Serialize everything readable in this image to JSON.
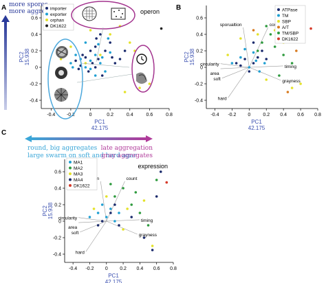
{
  "colors": {
    "importer": "#1a2a6c",
    "exporter": "#1f9fd2",
    "orphan": "#e4e22a",
    "dk1622": "#222222",
    "ATPase": "#1a2a6c",
    "TM": "#1f9fd2",
    "SBP": "#e4e22a",
    "AT": "#d77a1f",
    "TMSBP": "#2e9a3e",
    "MA1": "#1f9fd2",
    "MA2": "#2e9a3e",
    "MA3": "#e4e22a",
    "MA4": "#1a2a6c",
    "DK1622": "#d63a2a",
    "axis_blue": "#3a4fb0",
    "arrow_left": "#3aa6d8",
    "arrow_right": "#b03a9a",
    "ellipse_blue": "#4aa7dc",
    "ellipse_purple": "#a3338e"
  },
  "arrows": {
    "top_line1": "more spores",
    "top_line2": "more aggregates",
    "left_line1": "round, big aggregates",
    "left_line2": "large swarm on soft and hard agar",
    "right_line1": "late aggregation",
    "right_line2": "gray aggregates"
  },
  "panels": {
    "A": {
      "letter": "A",
      "title": "operon",
      "legend": [
        "importer",
        "exporter",
        "orphan",
        "DK1622"
      ],
      "xlabel": "PC1",
      "xlabel2": "42.175",
      "ylabel": "PC2",
      "ylabel2": "15.938",
      "xticks": [
        "-0.4",
        "-0.2",
        "0",
        "0.2",
        "0.4",
        "0.6",
        "0.8"
      ],
      "yticks": [
        "0.6",
        "0.4",
        "0.2",
        "0",
        "-0.2",
        "-0.4"
      ]
    },
    "B": {
      "letter": "B",
      "title": "subunit",
      "legend": [
        "ATPase",
        "TM",
        "SBP",
        "A/T",
        "TM/SBP",
        "DK1622"
      ],
      "xlabel": "PC1",
      "xlabel2": "42.175",
      "ylabel": "PC2",
      "ylabel2": "15.938",
      "xticks": [
        "-0.4",
        "-0.2",
        "0",
        "0.2",
        "0.4",
        "0.6",
        "0.8"
      ],
      "yticks": [
        "0.6",
        "0.4",
        "0.2",
        "0",
        "-0.2",
        "-0.4"
      ],
      "loadings": [
        "sporualtion",
        "count",
        "circularity",
        "area",
        "timing",
        "soft",
        "grayness",
        "hard"
      ]
    },
    "C": {
      "letter": "C",
      "title": "expression",
      "legend": [
        "MA1",
        "MA2",
        "MA3",
        "MA4",
        "DK1622"
      ],
      "xlabel": "PC1",
      "xlabel2": "42.175",
      "ylabel": "PC2",
      "ylabel2": "15.938",
      "xticks": [
        "-0.4",
        "-0.2",
        "0",
        "0.2",
        "0.4",
        "0.6",
        "0.8"
      ],
      "yticks": [
        "0.6",
        "0.4",
        "0.2",
        "0",
        "-0.2",
        "-0.4"
      ],
      "loadings": [
        "sporualtion",
        "count",
        "circularity",
        "area",
        "timing",
        "soft",
        "grayness",
        "hard"
      ]
    }
  },
  "chart_data": [
    {
      "type": "scatter",
      "title": "operon",
      "xlabel": "PC1 42.175",
      "ylabel": "PC2 15.938",
      "xlim": [
        -0.5,
        0.8
      ],
      "ylim": [
        -0.5,
        0.75
      ],
      "series": [
        {
          "name": "importer",
          "color": "#1a2a6c",
          "points": [
            [
              -0.05,
              0.12
            ],
            [
              0.02,
              0.05
            ],
            [
              -0.1,
              0.02
            ],
            [
              0.08,
              0.1
            ],
            [
              0.15,
              0.2
            ],
            [
              -0.02,
              -0.05
            ],
            [
              0.05,
              0.0
            ],
            [
              0.2,
              0.3
            ],
            [
              0.1,
              0.4
            ],
            [
              -0.15,
              0.08
            ],
            [
              0.0,
              0.2
            ],
            [
              0.12,
              -0.1
            ],
            [
              0.3,
              0.1
            ],
            [
              0.25,
              0.05
            ],
            [
              -0.08,
              0.15
            ],
            [
              0.05,
              0.25
            ],
            [
              0.35,
              0.2
            ],
            [
              0.22,
              0.12
            ],
            [
              0.06,
              0.35
            ],
            [
              -0.12,
              -0.02
            ]
          ]
        },
        {
          "name": "exporter",
          "color": "#1f9fd2",
          "points": [
            [
              -0.2,
              0.05
            ],
            [
              -0.1,
              0.1
            ],
            [
              0.0,
              -0.02
            ],
            [
              0.05,
              0.15
            ],
            [
              -0.05,
              0.3
            ],
            [
              0.1,
              0.05
            ],
            [
              0.15,
              -0.05
            ],
            [
              -0.15,
              0.15
            ],
            [
              0.05,
              -0.1
            ],
            [
              0.2,
              0.18
            ],
            [
              -0.05,
              0.0
            ],
            [
              0.08,
              0.28
            ],
            [
              0.0,
              0.08
            ],
            [
              -0.18,
              0.0
            ],
            [
              0.12,
              0.12
            ],
            [
              0.18,
              0.35
            ]
          ]
        },
        {
          "name": "orphan",
          "color": "#e4e22a",
          "points": [
            [
              -0.3,
              0.1
            ],
            [
              0.1,
              0.15
            ],
            [
              0.4,
              0.3
            ],
            [
              0.55,
              0.1
            ],
            [
              -0.05,
              0.05
            ],
            [
              0.3,
              0.5
            ],
            [
              0.6,
              -0.2
            ],
            [
              0.2,
              0.4
            ],
            [
              0.45,
              0.2
            ],
            [
              -0.2,
              0.25
            ],
            [
              0.5,
              -0.25
            ],
            [
              0.0,
              0.45
            ],
            [
              0.35,
              -0.3
            ]
          ]
        },
        {
          "name": "DK1622",
          "color": "#222222",
          "points": [
            [
              0.72,
              0.47
            ]
          ]
        }
      ]
    },
    {
      "type": "scatter",
      "title": "subunit",
      "xlabel": "PC1 42.175",
      "ylabel": "PC2 15.938",
      "xlim": [
        -0.5,
        0.8
      ],
      "ylim": [
        -0.5,
        0.75
      ],
      "series": [
        {
          "name": "ATPase",
          "color": "#1a2a6c",
          "points": [
            [
              -0.05,
              0.1
            ],
            [
              0.05,
              0.05
            ],
            [
              -0.1,
              0.02
            ],
            [
              0.1,
              0.12
            ],
            [
              0.0,
              -0.05
            ],
            [
              0.15,
              0.2
            ],
            [
              -0.15,
              0.05
            ],
            [
              0.05,
              0.3
            ],
            [
              0.2,
              0.1
            ]
          ]
        },
        {
          "name": "TM",
          "color": "#1f9fd2",
          "points": [
            [
              -0.2,
              0.05
            ],
            [
              -0.1,
              0.12
            ],
            [
              0.0,
              0.0
            ],
            [
              0.05,
              0.18
            ],
            [
              0.12,
              -0.05
            ],
            [
              -0.05,
              0.22
            ],
            [
              0.08,
              0.08
            ],
            [
              0.18,
              0.05
            ]
          ]
        },
        {
          "name": "SBP",
          "color": "#e4e22a",
          "points": [
            [
              -0.25,
              0.15
            ],
            [
              0.1,
              0.4
            ],
            [
              0.4,
              0.3
            ],
            [
              0.5,
              -0.25
            ],
            [
              0.3,
              0.45
            ],
            [
              -0.1,
              0.35
            ],
            [
              0.6,
              -0.2
            ],
            [
              0.2,
              -0.15
            ]
          ]
        },
        {
          "name": "A/T",
          "color": "#d77a1f",
          "points": [
            [
              0.45,
              -0.3
            ],
            [
              0.35,
              0.5
            ],
            [
              0.55,
              0.2
            ],
            [
              0.05,
              0.45
            ]
          ]
        },
        {
          "name": "TM/SBP",
          "color": "#2e9a3e",
          "points": [
            [
              0.3,
              0.25
            ],
            [
              0.15,
              0.3
            ],
            [
              0.4,
              0.15
            ],
            [
              0.25,
              0.4
            ],
            [
              0.5,
              0.05
            ],
            [
              0.1,
              0.2
            ],
            [
              0.35,
              -0.1
            ],
            [
              0.2,
              0.5
            ],
            [
              0.45,
              0.35
            ]
          ]
        },
        {
          "name": "DK1622",
          "color": "#d63a2a",
          "points": [
            [
              0.72,
              0.47
            ]
          ]
        }
      ]
    },
    {
      "type": "scatter",
      "title": "expression",
      "xlabel": "PC1 42.175",
      "ylabel": "PC2 15.938",
      "xlim": [
        -0.5,
        0.8
      ],
      "ylim": [
        -0.5,
        0.75
      ],
      "series": [
        {
          "name": "MA1",
          "color": "#1f9fd2",
          "points": [
            [
              -0.1,
              0.1
            ],
            [
              0.0,
              0.05
            ],
            [
              -0.05,
              0.2
            ],
            [
              0.1,
              0.0
            ],
            [
              -0.2,
              0.05
            ],
            [
              0.05,
              0.15
            ],
            [
              0.15,
              0.1
            ]
          ]
        },
        {
          "name": "MA2",
          "color": "#2e9a3e",
          "points": [
            [
              0.1,
              0.3
            ],
            [
              0.3,
              0.2
            ],
            [
              0.2,
              0.4
            ],
            [
              0.4,
              0.1
            ],
            [
              0.05,
              0.45
            ],
            [
              0.35,
              0.35
            ],
            [
              0.5,
              -0.05
            ],
            [
              0.6,
              0.5
            ]
          ]
        },
        {
          "name": "MA3",
          "color": "#e4e22a",
          "points": [
            [
              -0.15,
              0.15
            ],
            [
              0.2,
              -0.1
            ],
            [
              0.25,
              0.15
            ],
            [
              0.45,
              0.25
            ],
            [
              0.0,
              0.3
            ],
            [
              0.55,
              -0.3
            ]
          ]
        },
        {
          "name": "MA4",
          "color": "#1a2a6c",
          "points": [
            [
              -0.05,
              0.0
            ],
            [
              0.05,
              0.1
            ],
            [
              -0.1,
              -0.05
            ],
            [
              0.1,
              0.2
            ],
            [
              0.15,
              -0.05
            ],
            [
              0.3,
              0.05
            ],
            [
              0.45,
              -0.2
            ],
            [
              0.6,
              0.3
            ],
            [
              0.65,
              0.6
            ],
            [
              0.55,
              -0.35
            ]
          ]
        },
        {
          "name": "DK1622",
          "color": "#d63a2a",
          "points": [
            [
              0.72,
              0.47
            ]
          ]
        }
      ]
    }
  ]
}
